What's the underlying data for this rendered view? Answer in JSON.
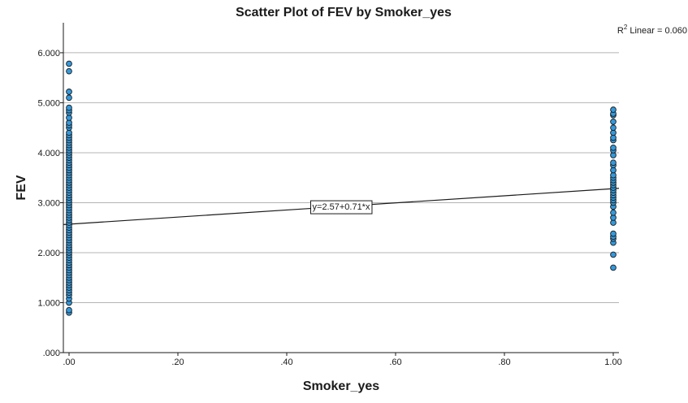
{
  "chart_data": {
    "type": "scatter",
    "title": "Scatter Plot of FEV by Smoker_yes",
    "xlabel": "Smoker_yes",
    "ylabel": "FEV",
    "xlim": [
      0,
      1
    ],
    "ylim": [
      0,
      6.6
    ],
    "x_ticks": [
      ".00",
      ".20",
      ".40",
      ".60",
      ".80",
      "1.00"
    ],
    "x_tick_values": [
      0,
      0.2,
      0.4,
      0.6,
      0.8,
      1.0
    ],
    "y_ticks": [
      ".000",
      "1.000",
      "2.000",
      "3.000",
      "4.000",
      "5.000",
      "6.000"
    ],
    "y_tick_values": [
      0,
      1,
      2,
      3,
      4,
      5,
      6
    ],
    "grid": "horizontal",
    "marker_color": "#3399dd",
    "marker_edge": "#1a1a1a",
    "fit_line": {
      "intercept": 2.57,
      "slope": 0.71,
      "label": "y=2.57+0.71*x",
      "label_x": 0.5
    },
    "r2_label": {
      "prefix": "R",
      "sup": "2",
      "suffix": " Linear = 0.060"
    },
    "series": [
      {
        "x_value": 0,
        "values": [
          0.8,
          0.85,
          1.0,
          1.08,
          1.15,
          1.2,
          1.25,
          1.3,
          1.35,
          1.4,
          1.45,
          1.5,
          1.55,
          1.6,
          1.65,
          1.7,
          1.75,
          1.8,
          1.85,
          1.9,
          1.95,
          2.0,
          2.05,
          2.1,
          2.15,
          2.2,
          2.25,
          2.3,
          2.35,
          2.4,
          2.45,
          2.5,
          2.55,
          2.6,
          2.65,
          2.7,
          2.75,
          2.8,
          2.85,
          2.9,
          2.95,
          3.0,
          3.05,
          3.1,
          3.15,
          3.2,
          3.25,
          3.3,
          3.35,
          3.4,
          3.45,
          3.5,
          3.55,
          3.6,
          3.65,
          3.7,
          3.75,
          3.8,
          3.85,
          3.9,
          3.95,
          4.0,
          4.05,
          4.1,
          4.15,
          4.2,
          4.25,
          4.3,
          4.35,
          4.4,
          4.5,
          4.55,
          4.6,
          4.7,
          4.8,
          4.85,
          4.9,
          5.1,
          5.22,
          5.63,
          5.78
        ]
      },
      {
        "x_value": 1,
        "values": [
          1.7,
          1.96,
          2.2,
          2.28,
          2.32,
          2.38,
          2.6,
          2.7,
          2.8,
          2.92,
          3.0,
          3.05,
          3.1,
          3.15,
          3.2,
          3.25,
          3.3,
          3.35,
          3.4,
          3.45,
          3.5,
          3.55,
          3.65,
          3.75,
          3.8,
          3.95,
          4.05,
          4.1,
          4.25,
          4.3,
          4.4,
          4.5,
          4.62,
          4.75,
          4.78,
          4.86
        ]
      }
    ]
  }
}
